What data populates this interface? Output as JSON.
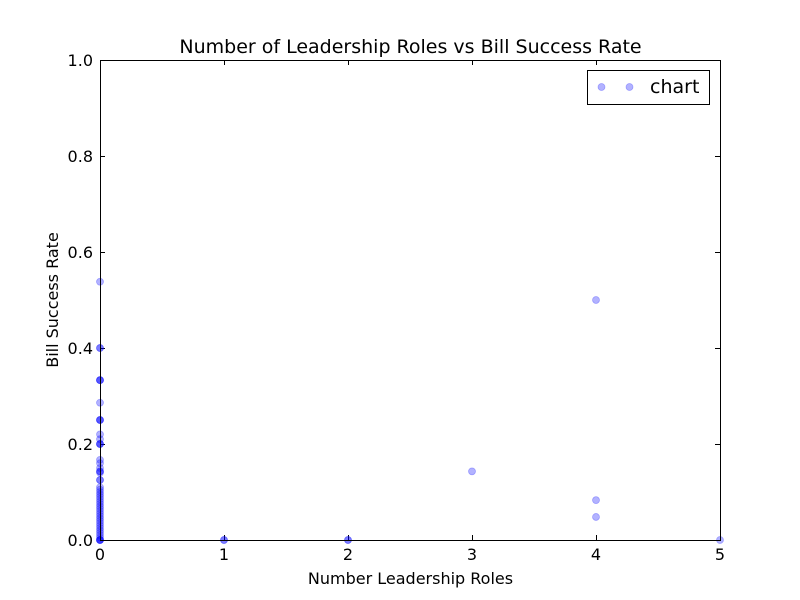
{
  "chart_data": {
    "type": "scatter",
    "title": "Number of Leadership Roles vs Bill Success Rate",
    "xlabel": "Number Leadership Roles",
    "ylabel": "Bill Success Rate",
    "xlim": [
      0,
      5
    ],
    "ylim": [
      0,
      1
    ],
    "x_ticks": [
      {
        "value": 0,
        "label": "0"
      },
      {
        "value": 1,
        "label": "1"
      },
      {
        "value": 2,
        "label": "2"
      },
      {
        "value": 3,
        "label": "3"
      },
      {
        "value": 4,
        "label": "4"
      },
      {
        "value": 5,
        "label": "5"
      }
    ],
    "y_ticks": [
      {
        "value": 0,
        "label": "0.0"
      },
      {
        "value": 0.2,
        "label": "0.2"
      },
      {
        "value": 0.4,
        "label": "0.4"
      },
      {
        "value": 0.6,
        "label": "0.6"
      },
      {
        "value": 0.8,
        "label": "0.8"
      },
      {
        "value": 1.0,
        "label": "1.0"
      }
    ],
    "grid": false,
    "legend": {
      "position": "top-right",
      "entries": [
        "chart"
      ]
    },
    "series": [
      {
        "name": "chart",
        "color": "#0000ff",
        "opacity": 0.3,
        "points": [
          {
            "x": 0,
            "y": 0.0
          },
          {
            "x": 0,
            "y": 0.0
          },
          {
            "x": 0,
            "y": 0.0
          },
          {
            "x": 0,
            "y": 0.0
          },
          {
            "x": 0,
            "y": 0.005
          },
          {
            "x": 0,
            "y": 0.01
          },
          {
            "x": 0,
            "y": 0.015
          },
          {
            "x": 0,
            "y": 0.02
          },
          {
            "x": 0,
            "y": 0.025
          },
          {
            "x": 0,
            "y": 0.03
          },
          {
            "x": 0,
            "y": 0.035
          },
          {
            "x": 0,
            "y": 0.04
          },
          {
            "x": 0,
            "y": 0.045
          },
          {
            "x": 0,
            "y": 0.05
          },
          {
            "x": 0,
            "y": 0.055
          },
          {
            "x": 0,
            "y": 0.06
          },
          {
            "x": 0,
            "y": 0.065
          },
          {
            "x": 0,
            "y": 0.07
          },
          {
            "x": 0,
            "y": 0.075
          },
          {
            "x": 0,
            "y": 0.08
          },
          {
            "x": 0,
            "y": 0.085
          },
          {
            "x": 0,
            "y": 0.09
          },
          {
            "x": 0,
            "y": 0.095
          },
          {
            "x": 0,
            "y": 0.1
          },
          {
            "x": 0,
            "y": 0.105
          },
          {
            "x": 0,
            "y": 0.11
          },
          {
            "x": 0,
            "y": 0.125
          },
          {
            "x": 0,
            "y": 0.125
          },
          {
            "x": 0,
            "y": 0.14
          },
          {
            "x": 0,
            "y": 0.143
          },
          {
            "x": 0,
            "y": 0.143
          },
          {
            "x": 0,
            "y": 0.15
          },
          {
            "x": 0,
            "y": 0.16
          },
          {
            "x": 0,
            "y": 0.167
          },
          {
            "x": 0,
            "y": 0.2
          },
          {
            "x": 0,
            "y": 0.2
          },
          {
            "x": 0,
            "y": 0.2
          },
          {
            "x": 0,
            "y": 0.21
          },
          {
            "x": 0,
            "y": 0.22
          },
          {
            "x": 0,
            "y": 0.25
          },
          {
            "x": 0,
            "y": 0.25
          },
          {
            "x": 0,
            "y": 0.25
          },
          {
            "x": 0,
            "y": 0.286
          },
          {
            "x": 0,
            "y": 0.333
          },
          {
            "x": 0,
            "y": 0.333
          },
          {
            "x": 0,
            "y": 0.333
          },
          {
            "x": 0,
            "y": 0.4
          },
          {
            "x": 0,
            "y": 0.4
          },
          {
            "x": 0,
            "y": 0.538
          },
          {
            "x": 1,
            "y": 0.0
          },
          {
            "x": 1,
            "y": 0.0
          },
          {
            "x": 2,
            "y": 0.0
          },
          {
            "x": 2,
            "y": 0.0
          },
          {
            "x": 3,
            "y": 0.143
          },
          {
            "x": 4,
            "y": 0.5
          },
          {
            "x": 4,
            "y": 0.083
          },
          {
            "x": 4,
            "y": 0.048
          },
          {
            "x": 5,
            "y": 0.0
          }
        ]
      }
    ]
  }
}
